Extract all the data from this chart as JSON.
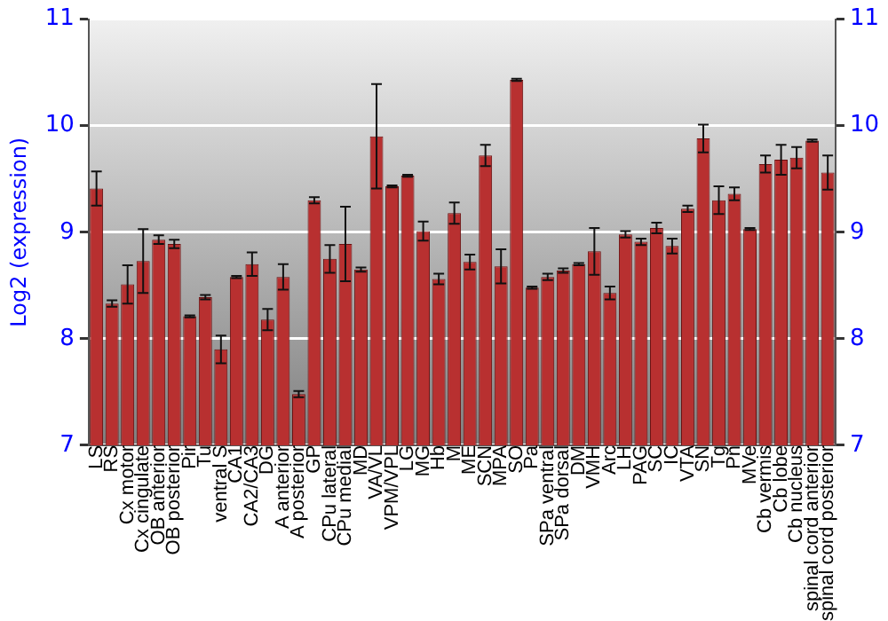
{
  "chart_data": {
    "type": "bar",
    "ylabel": "Log2 (expression)",
    "categories": [
      "LS",
      "RS",
      "Cx motor",
      "Cx cingulate",
      "OB anterior",
      "OB posterior",
      "Pir",
      "Tu",
      "ventral S",
      "CA1",
      "CA2/CA3",
      "DG",
      "A anterior",
      "A posterior",
      "GP",
      "CPu lateral",
      "CPu medial",
      "MD",
      "VA/VL",
      "VPM/VPL",
      "LG",
      "MG",
      "Hb",
      "M",
      "ME",
      "SCN",
      "MPA",
      "SO",
      "Pa",
      "SPa ventral",
      "SPa dorsal",
      "DM",
      "VMH",
      "Arc",
      "LH",
      "PAG",
      "SC",
      "IC",
      "VTA",
      "SN",
      "Tg",
      "Pn",
      "MVe",
      "Cb vermis",
      "Cb lobe",
      "Cb nucleus",
      "spinal cord anterior",
      "spinal cord posterior"
    ],
    "values": [
      9.41,
      8.33,
      8.51,
      8.73,
      8.93,
      8.89,
      8.21,
      8.39,
      7.9,
      8.58,
      8.7,
      8.18,
      8.58,
      7.48,
      9.3,
      8.75,
      8.89,
      8.65,
      9.9,
      9.43,
      9.53,
      9.01,
      8.56,
      9.18,
      8.72,
      9.72,
      8.68,
      10.43,
      8.48,
      8.58,
      8.64,
      8.7,
      8.82,
      8.43,
      8.98,
      8.91,
      9.04,
      8.87,
      9.22,
      9.88,
      9.3,
      9.36,
      9.03,
      9.64,
      9.68,
      9.7,
      9.86,
      9.56
    ],
    "errors": [
      0.16,
      0.03,
      0.18,
      0.3,
      0.04,
      0.04,
      0.01,
      0.02,
      0.13,
      0.01,
      0.11,
      0.1,
      0.12,
      0.03,
      0.03,
      0.13,
      0.35,
      0.02,
      0.49,
      0.01,
      0.01,
      0.09,
      0.05,
      0.1,
      0.07,
      0.1,
      0.16,
      0.01,
      0.01,
      0.03,
      0.02,
      0.01,
      0.22,
      0.06,
      0.03,
      0.03,
      0.05,
      0.07,
      0.03,
      0.13,
      0.13,
      0.06,
      0.01,
      0.08,
      0.14,
      0.1,
      0.01,
      0.16
    ],
    "color": "#b83030",
    "ylim": [
      7,
      11
    ],
    "yticks": [
      7,
      8,
      9,
      10,
      11
    ],
    "y2lim": [
      7,
      11
    ],
    "y2ticks": [
      7,
      8,
      9,
      10,
      11
    ],
    "grid": "y"
  }
}
